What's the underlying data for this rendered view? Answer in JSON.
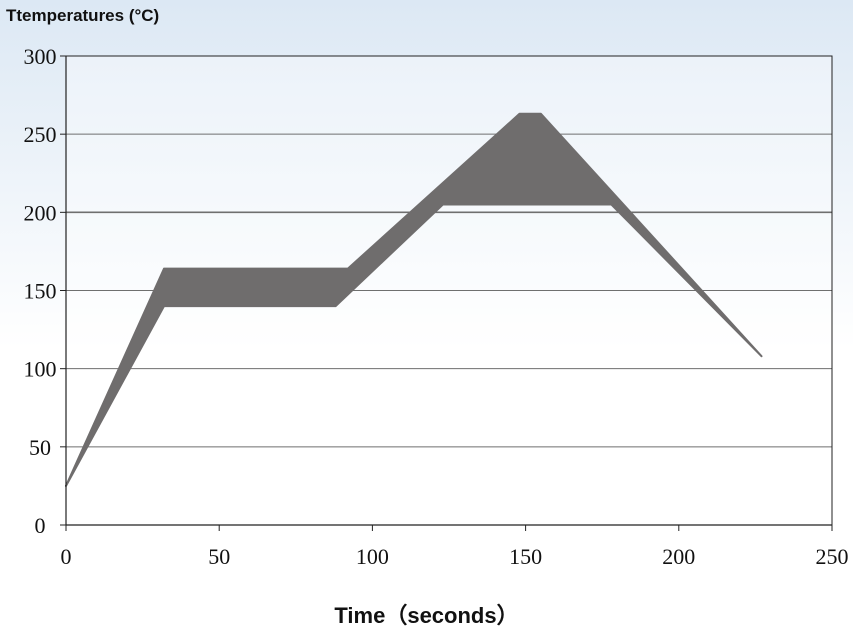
{
  "chart_data": {
    "type": "area",
    "title": "",
    "ylabel": "Ttemperatures (°C)",
    "xlabel": "Time（seconds）",
    "xlim": [
      0,
      250
    ],
    "ylim": [
      0,
      300
    ],
    "x_ticks": [
      "0",
      "50",
      "100",
      "150",
      "200",
      "250"
    ],
    "y_ticks": [
      "0",
      "50",
      "100",
      "150",
      "200",
      "250",
      "300"
    ],
    "grid": true,
    "series": [
      {
        "color": "#231f20",
        "upper": [
          [
            0,
            25
          ],
          [
            32,
            164
          ],
          [
            92,
            164
          ],
          [
            148,
            263
          ],
          [
            155,
            263
          ],
          [
            227,
            108
          ]
        ],
        "lower": [
          [
            0,
            25
          ],
          [
            32,
            140
          ],
          [
            88,
            140
          ],
          [
            123,
            205
          ],
          [
            178,
            205
          ],
          [
            227,
            108
          ]
        ]
      }
    ]
  }
}
